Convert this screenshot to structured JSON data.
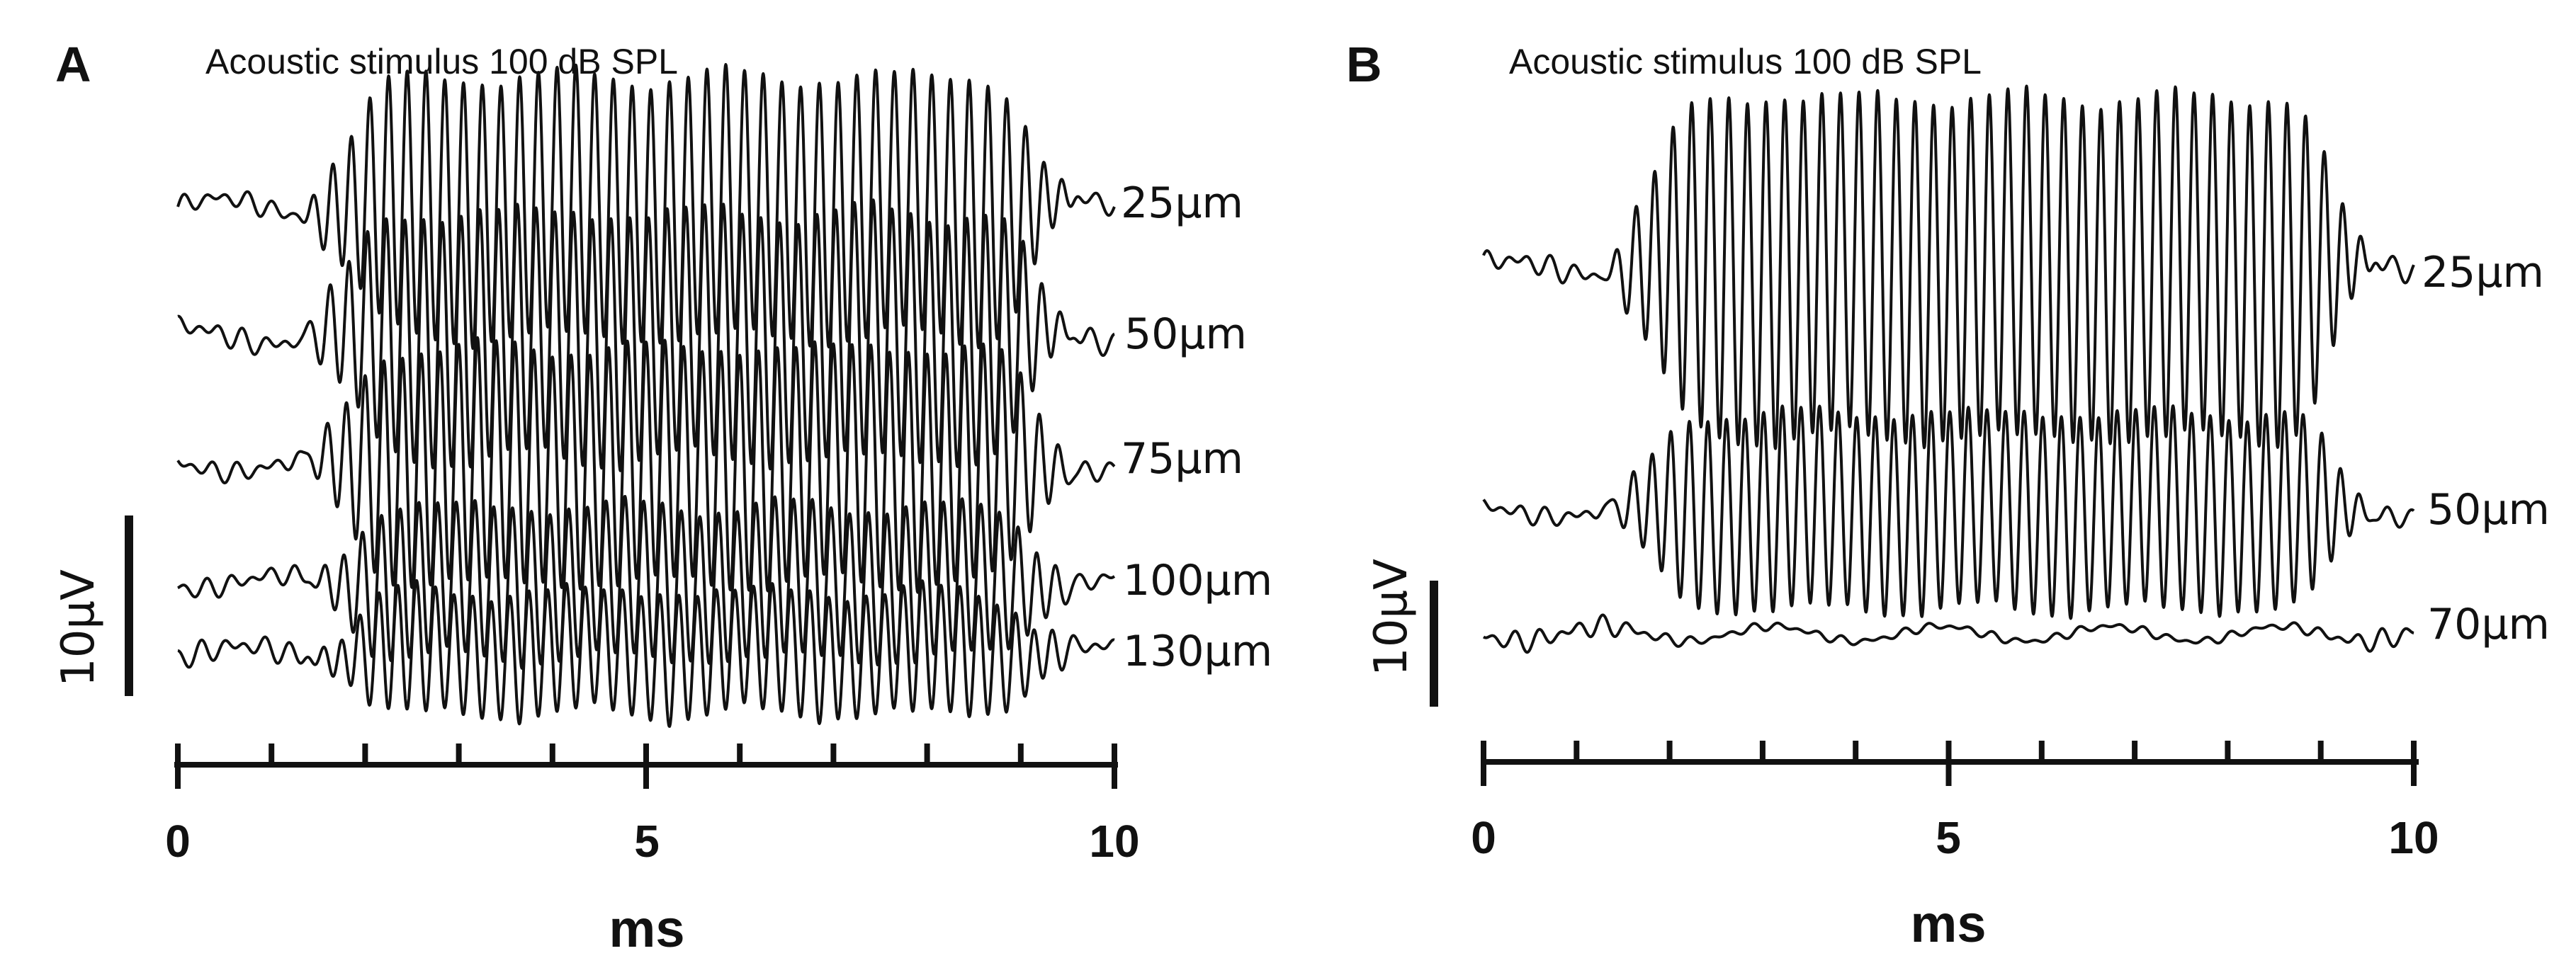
{
  "chart_data": [
    {
      "panel": "A",
      "type": "line",
      "title": "Acoustic stimulus 100 dB SPL",
      "xlabel": "ms",
      "xlim": [
        0,
        10
      ],
      "xticks": [
        "0",
        "5",
        "10"
      ],
      "x_minor_step": 1,
      "scale_bar": {
        "label": "10µV",
        "value_uV": 10
      },
      "series": [
        {
          "name": "25µm",
          "peak_uV": 7.2,
          "baseline_uV": 0.5,
          "noise_uV": 0.6,
          "phase": 0.0
        },
        {
          "name": "50µm",
          "peak_uV": 6.8,
          "baseline_uV": 0.5,
          "noise_uV": 0.7,
          "phase": 0.8
        },
        {
          "name": "75µm",
          "peak_uV": 6.5,
          "baseline_uV": 0.4,
          "noise_uV": 0.6,
          "phase": 1.6
        },
        {
          "name": "100µm",
          "peak_uV": 4.2,
          "baseline_uV": 0.4,
          "noise_uV": 0.6,
          "phase": 2.4
        },
        {
          "name": "130µm",
          "peak_uV": 3.4,
          "baseline_uV": 0.4,
          "noise_uV": 0.7,
          "phase": 3.2
        }
      ]
    },
    {
      "panel": "B",
      "type": "line",
      "title": "Acoustic stimulus 100 dB SPL",
      "xlabel": "ms",
      "xlim": [
        0,
        10
      ],
      "xticks": [
        "0",
        "5",
        "10"
      ],
      "x_minor_step": 1,
      "scale_bar": {
        "label": "10µV",
        "value_uV": 10
      },
      "series": [
        {
          "name": "25µm",
          "peak_uV": 13.5,
          "baseline_uV": 0.6,
          "noise_uV": 1.0,
          "phase": 0.4
        },
        {
          "name": "50µm",
          "peak_uV": 7.8,
          "baseline_uV": 0.5,
          "noise_uV": 0.8,
          "phase": 1.2
        },
        {
          "name": "70µm",
          "peak_uV": 0.0,
          "baseline_uV": 0.6,
          "noise_uV": 0.9,
          "phase": 2.0
        }
      ]
    }
  ]
}
